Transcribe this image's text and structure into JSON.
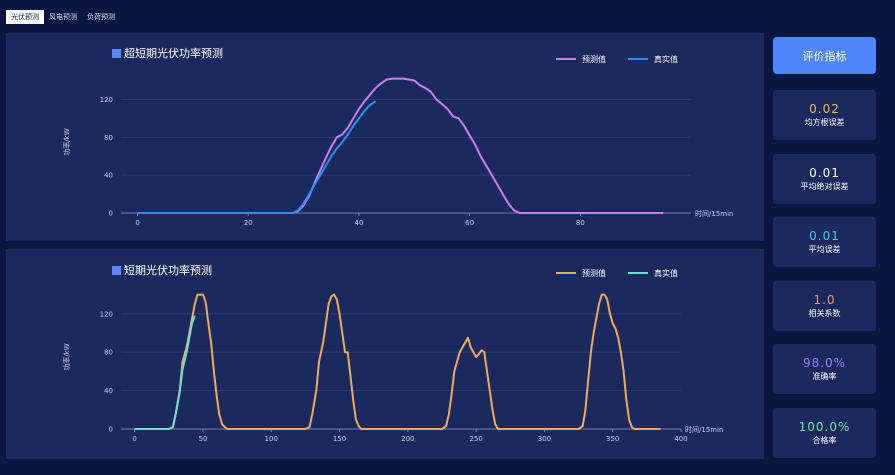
{
  "tabs": [
    "光伏预测",
    "风电预测",
    "负荷预测"
  ],
  "sidebar": {
    "button_label": "评价指标",
    "metrics": [
      {
        "value": "0.02",
        "label": "均方根误差",
        "color": "#f3b95f"
      },
      {
        "value": "0.01",
        "label": "平均绝对误差",
        "color": "#ffffff"
      },
      {
        "value": "0.01",
        "label": "平均误差",
        "color": "#49c6f5"
      },
      {
        "value": "1.0",
        "label": "相关系数",
        "color": "#f49a5e"
      },
      {
        "value": "98.0%",
        "label": "准确率",
        "color": "#9d7cf5"
      },
      {
        "value": "100.0%",
        "label": "合格率",
        "color": "#6fe5a0"
      }
    ]
  },
  "chart_data": [
    {
      "type": "line",
      "title": "超短期光伏功率预测",
      "xlabel": "时间/15min",
      "ylabel": "功率/kW",
      "xlim": [
        -3,
        100
      ],
      "ylim": [
        0,
        150
      ],
      "xticks": [
        0,
        20,
        40,
        60,
        80
      ],
      "yticks": [
        0,
        40,
        80,
        120
      ],
      "legend": "top-right",
      "series": [
        {
          "name": "预测值",
          "color": "#d07cf0",
          "x": [
            0,
            5,
            10,
            15,
            20,
            25,
            28,
            29,
            30,
            31,
            32,
            33,
            34,
            35,
            36,
            37,
            38,
            39,
            40,
            41,
            42,
            43,
            44,
            45,
            46,
            47,
            48,
            49,
            50,
            51,
            52,
            53,
            54,
            55,
            56,
            57,
            58,
            59,
            60,
            61,
            62,
            63,
            64,
            65,
            66,
            67,
            68,
            69,
            70,
            75,
            80,
            85,
            90,
            95
          ],
          "y": [
            0,
            0,
            0,
            0,
            0,
            0,
            0,
            2,
            8,
            18,
            32,
            45,
            58,
            70,
            80,
            83,
            90,
            100,
            110,
            118,
            125,
            132,
            137,
            141,
            142,
            142,
            142,
            141,
            140,
            135,
            132,
            128,
            120,
            115,
            110,
            102,
            100,
            92,
            82,
            72,
            60,
            50,
            40,
            30,
            20,
            10,
            3,
            0,
            0,
            0,
            0,
            0,
            0,
            0
          ]
        },
        {
          "name": "真实值",
          "color": "#2e8ef0",
          "x": [
            0,
            5,
            10,
            15,
            20,
            25,
            28,
            29,
            30,
            31,
            32,
            33,
            34,
            35,
            36,
            37,
            38,
            39,
            40,
            41,
            42,
            43
          ],
          "y": [
            0,
            0,
            0,
            0,
            0,
            0,
            0,
            3,
            10,
            20,
            30,
            40,
            50,
            60,
            68,
            75,
            83,
            92,
            100,
            108,
            114,
            118
          ]
        }
      ]
    },
    {
      "type": "line",
      "title": "短期光伏功率预测",
      "xlabel": "时间/15min",
      "ylabel": "功率/kW",
      "xlim": [
        -10,
        400
      ],
      "ylim": [
        0,
        150
      ],
      "xticks": [
        0,
        50,
        100,
        150,
        200,
        250,
        300,
        350,
        400
      ],
      "yticks": [
        0,
        40,
        80,
        120
      ],
      "legend": "top-right",
      "series": [
        {
          "name": "预测值",
          "color": "#f0a85c",
          "x": [
            0,
            25,
            28,
            30,
            33,
            35,
            38,
            40,
            42,
            44,
            46,
            48,
            50,
            52,
            54,
            56,
            58,
            60,
            62,
            64,
            66,
            68,
            70,
            75,
            100,
            125,
            128,
            130,
            133,
            135,
            138,
            140,
            142,
            144,
            146,
            148,
            150,
            152,
            154,
            156,
            158,
            160,
            162,
            164,
            166,
            168,
            170,
            175,
            200,
            225,
            228,
            230,
            232,
            234,
            236,
            238,
            240,
            242,
            244,
            246,
            248,
            250,
            252,
            254,
            256,
            258,
            260,
            262,
            264,
            266,
            270,
            300,
            325,
            328,
            330,
            332,
            334,
            336,
            338,
            340,
            342,
            344,
            346,
            348,
            350,
            352,
            354,
            356,
            358,
            360,
            362,
            364,
            366,
            370,
            385
          ],
          "y": [
            0,
            0,
            2,
            15,
            40,
            70,
            85,
            100,
            115,
            130,
            140,
            140,
            140,
            132,
            110,
            90,
            60,
            35,
            15,
            5,
            2,
            0,
            0,
            0,
            0,
            0,
            2,
            15,
            40,
            70,
            90,
            110,
            130,
            138,
            140,
            135,
            120,
            100,
            80,
            80,
            55,
            30,
            10,
            3,
            0,
            0,
            0,
            0,
            0,
            0,
            3,
            15,
            35,
            60,
            70,
            80,
            85,
            90,
            95,
            85,
            80,
            75,
            78,
            82,
            80,
            60,
            40,
            20,
            5,
            0,
            0,
            0,
            0,
            3,
            20,
            50,
            80,
            100,
            115,
            130,
            140,
            140,
            135,
            120,
            110,
            105,
            95,
            80,
            60,
            30,
            10,
            2,
            0,
            0,
            0
          ]
        },
        {
          "name": "真实值",
          "color": "#6fdcd0",
          "x": [
            0,
            25,
            28,
            30,
            33,
            35,
            38,
            40,
            42,
            44
          ],
          "y": [
            0,
            0,
            2,
            15,
            38,
            62,
            80,
            95,
            110,
            118
          ]
        }
      ]
    }
  ]
}
